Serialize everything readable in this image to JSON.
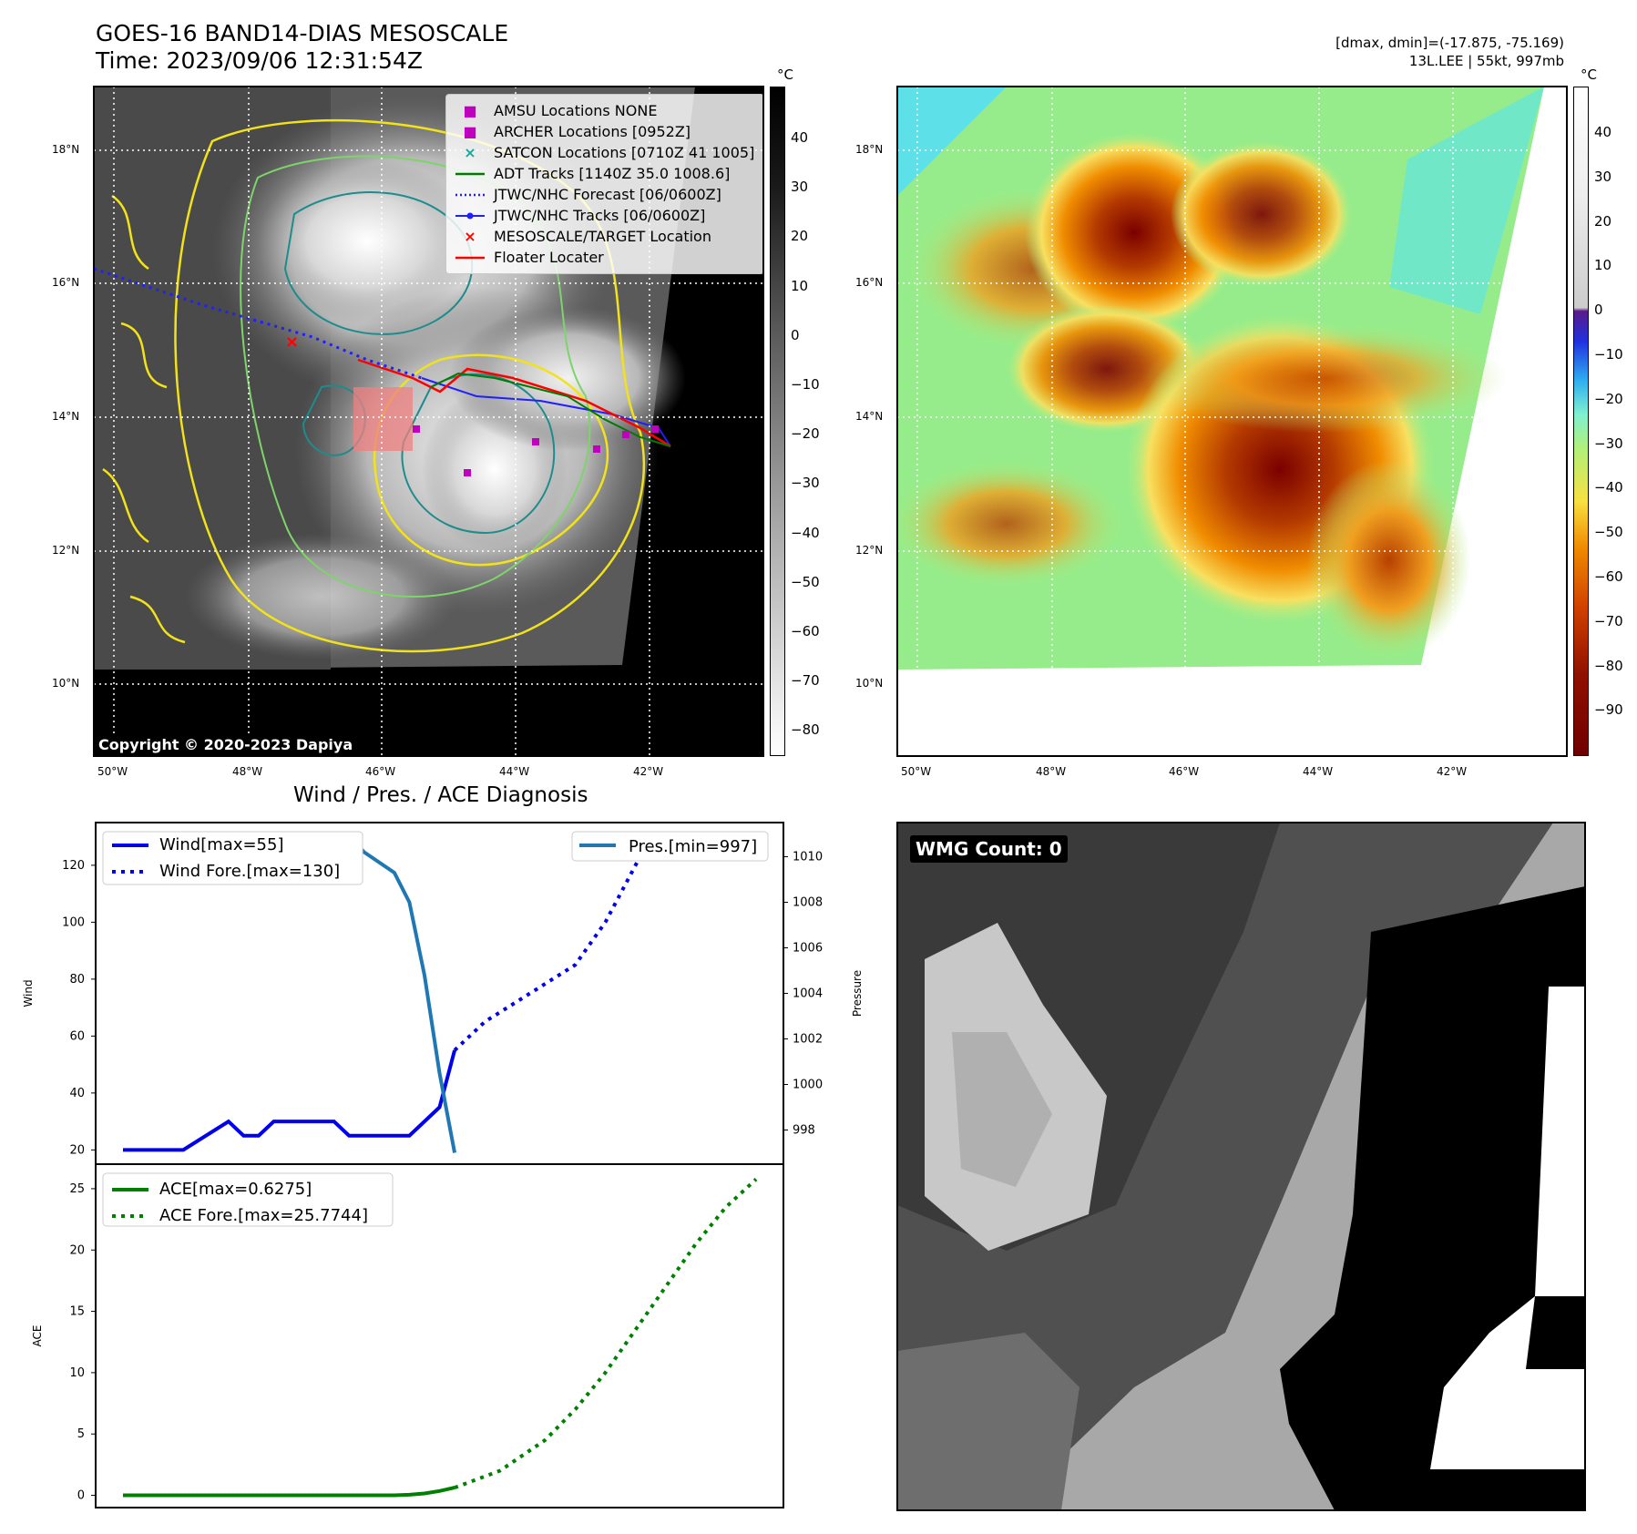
{
  "header": {
    "title_line1": "GOES-16 BAND14-DIAS MESOSCALE",
    "title_line2": "Time: 2023/09/06 12:31:54Z",
    "info_line1": "[dmax, dmin]=(-17.875, -75.169)",
    "info_line2": "13L.LEE | 55kt, 997mb"
  },
  "ir_map": {
    "copyright": "Copyright © 2020-2023 Dapiya",
    "lat_labels": [
      "18°N",
      "16°N",
      "14°N",
      "12°N",
      "10°N"
    ],
    "lon_labels": [
      "50°W",
      "48°W",
      "46°W",
      "44°W",
      "42°W"
    ],
    "legend": [
      {
        "label": "AMSU Locations NONE",
        "symbol": "■",
        "color": "#bf00bf"
      },
      {
        "label": "ARCHER Locations [0952Z]",
        "symbol": "■",
        "color": "#bf00bf"
      },
      {
        "label": "SATCON Locations [0710Z 41 1005]",
        "symbol": "×",
        "color": "#17a89a"
      },
      {
        "label": "ADT Tracks [1140Z 35.0 1008.6]",
        "symbol": "line",
        "color": "#007a00"
      },
      {
        "label": "JTWC/NHC Forecast [06/0600Z]",
        "symbol": "dotted",
        "color": "#1f1fff"
      },
      {
        "label": "JTWC/NHC Tracks [06/0600Z]",
        "symbol": "dotline",
        "color": "#1f1fff"
      },
      {
        "label": "MESOSCALE/TARGET Location",
        "symbol": "×",
        "color": "#ff0000"
      },
      {
        "label": "Floater Locater",
        "symbol": "line",
        "color": "#ff0000"
      }
    ],
    "colorbar_unit": "°C",
    "colorbar_ticks": [
      "40",
      "30",
      "20",
      "10",
      "0",
      "−10",
      "−20",
      "−30",
      "−40",
      "−50",
      "−60",
      "−70",
      "−80"
    ]
  },
  "color_map": {
    "lat_labels": [
      "18°N",
      "16°N",
      "14°N",
      "12°N",
      "10°N"
    ],
    "lon_labels": [
      "50°W",
      "48°W",
      "46°W",
      "44°W",
      "42°W"
    ],
    "colorbar_unit": "°C",
    "colorbar_ticks": [
      "40",
      "30",
      "20",
      "10",
      "0",
      "−10",
      "−20",
      "−30",
      "−40",
      "−50",
      "−60",
      "−70",
      "−80",
      "−90"
    ]
  },
  "wmg": {
    "label": "WMG Count: 0"
  },
  "chart_data": [
    {
      "type": "line",
      "title": "Wind / Pres. / ACE Diagnosis",
      "ylabel": "Wind",
      "ylabel_right": "Pressure",
      "ylim": [
        15,
        135
      ],
      "ylim_right": [
        996.5,
        1011.5
      ],
      "yticks": [
        "120",
        "100",
        "80",
        "60",
        "40",
        "20"
      ],
      "yticks_right": [
        "1010",
        "1008",
        "1006",
        "1004",
        "1002",
        "1000",
        "998"
      ],
      "series": [
        {
          "name": "Wind[max=55]",
          "color": "#0000ee",
          "style": "solid",
          "x": [
            0,
            4,
            7,
            8,
            9,
            10,
            14,
            15,
            19,
            21,
            22
          ],
          "values": [
            20,
            20,
            30,
            25,
            25,
            30,
            30,
            25,
            25,
            35,
            55
          ]
        },
        {
          "name": "Wind Fore.[max=130]",
          "color": "#0000ee",
          "style": "dotted",
          "x": [
            22,
            24,
            27,
            30,
            32,
            33,
            35,
            38,
            42
          ],
          "values": [
            55,
            65,
            75,
            85,
            100,
            110,
            130,
            130,
            130
          ]
        },
        {
          "name": "Pres.[min=997]",
          "color": "#1f77b4",
          "style": "solid",
          "axis": "right",
          "x": [
            0,
            2,
            5,
            8,
            12,
            13,
            15,
            16,
            18,
            19,
            20,
            21,
            22
          ],
          "values": [
            1010.9,
            1010.9,
            1010.6,
            1010.6,
            1010.6,
            1010.9,
            1010.9,
            1010.2,
            1009.3,
            1008,
            1004.8,
            1000.5,
            997
          ]
        }
      ]
    },
    {
      "type": "line",
      "ylabel": "ACE",
      "ylim": [
        -1,
        27
      ],
      "yticks": [
        "25",
        "20",
        "15",
        "10",
        "5",
        "0"
      ],
      "series": [
        {
          "name": "ACE[max=0.6275]",
          "color": "#008000",
          "style": "solid",
          "x": [
            0,
            18,
            19,
            20,
            21,
            22
          ],
          "values": [
            0,
            0,
            0.05,
            0.15,
            0.35,
            0.6275
          ]
        },
        {
          "name": "ACE Fore.[max=25.7744]",
          "color": "#008000",
          "style": "dotted",
          "x": [
            22,
            25,
            28,
            30,
            32,
            34,
            36,
            38,
            40,
            42
          ],
          "values": [
            0.6275,
            2,
            4.5,
            7,
            10,
            13.5,
            17,
            20.5,
            23.5,
            25.7744
          ]
        }
      ]
    }
  ]
}
